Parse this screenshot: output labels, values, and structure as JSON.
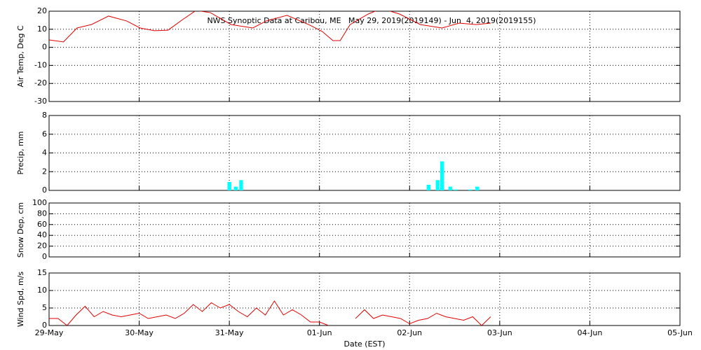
{
  "chart_data": [
    {
      "type": "line",
      "title": "NWS Synoptic Data at Caribou, ME   May 29, 2019(2019149) - Jun  4, 2019(2019155)",
      "y_label": "Air Temp, Deg C",
      "grid": true,
      "ylim": [
        -30,
        20
      ],
      "yticks": [
        -30,
        -20,
        -10,
        0,
        10,
        20
      ],
      "series": [
        {
          "name": "Air Temp",
          "color": "#e00000",
          "x": [
            0,
            0.16,
            0.31,
            0.47,
            0.66,
            0.86,
            1.01,
            1.17,
            1.32,
            1.48,
            1.63,
            1.79,
            2.02,
            2.26,
            2.41,
            2.64,
            2.88,
            3.03,
            3.15,
            3.23,
            3.34,
            3.54,
            3.69,
            3.89,
            4.12,
            4.36,
            4.55,
            4.74,
            4.9
          ],
          "values": [
            4.1,
            3,
            10.7,
            12.6,
            17.3,
            14.6,
            10.7,
            9.2,
            9.5,
            15.3,
            20.4,
            19.2,
            12.6,
            10.7,
            14.6,
            17.7,
            12.6,
            8.8,
            3.7,
            3.7,
            12.6,
            18.4,
            21.5,
            18.4,
            12.6,
            10.7,
            13.4,
            12.6,
            13.4
          ]
        }
      ]
    },
    {
      "type": "bar",
      "y_label": "Precip, mm",
      "grid": true,
      "color": "#00ffff",
      "ylim": [
        0,
        8
      ],
      "yticks": [
        0,
        2,
        4,
        6,
        8
      ],
      "x": [
        1.98,
        2.05,
        2.11,
        4.19,
        4.29,
        4.34,
        4.43,
        4.49,
        4.65,
        4.73
      ],
      "values": [
        0.9,
        0.4,
        1.1,
        0.6,
        1.1,
        3.1,
        0.4,
        0.1,
        0.1,
        0.4
      ]
    },
    {
      "type": "line",
      "y_label": "Snow Dep, cm",
      "grid": true,
      "ylim": [
        0,
        100
      ],
      "yticks": [
        0,
        20,
        40,
        60,
        80,
        100
      ],
      "series": []
    },
    {
      "type": "line",
      "y_label": "Wind Spd, m/s",
      "x_label": "Date (EST)",
      "grid": true,
      "ylim": [
        0,
        15
      ],
      "yticks": [
        0,
        5,
        10,
        15
      ],
      "xlim": [
        0,
        7
      ],
      "xticks": [
        {
          "value": 0,
          "label": "29-May"
        },
        {
          "value": 1,
          "label": "30-May"
        },
        {
          "value": 2,
          "label": "31-May"
        },
        {
          "value": 3,
          "label": "01-Jun"
        },
        {
          "value": 4,
          "label": "02-Jun"
        },
        {
          "value": 5,
          "label": "03-Jun"
        },
        {
          "value": 6,
          "label": "04-Jun"
        },
        {
          "value": 7,
          "label": "05-Jun"
        }
      ],
      "series": [
        {
          "name": "Wind Speed",
          "color": "#e00000",
          "x": [
            0,
            0.1,
            0.2,
            0.3,
            0.4,
            0.5,
            0.6,
            0.7,
            0.8,
            0.9,
            1,
            1.1,
            1.2,
            1.3,
            1.4,
            1.5,
            1.6,
            1.7,
            1.8,
            1.9,
            2,
            2.1,
            2.2,
            2.3,
            2.4,
            2.5,
            2.6,
            2.7,
            2.8,
            2.9,
            3,
            3.1,
            3.25,
            3.4,
            3.5,
            3.6,
            3.7,
            3.8,
            3.9,
            4,
            4.1,
            4.2,
            4.3,
            4.4,
            4.5,
            4.6,
            4.7,
            4.8,
            4.9
          ],
          "values": [
            2,
            2,
            0,
            3,
            5.5,
            2.5,
            4,
            3,
            2.5,
            3,
            3.5,
            2,
            2.5,
            3,
            2,
            3.5,
            6,
            4,
            6.5,
            5,
            6,
            4,
            2.5,
            5,
            3,
            7,
            3,
            4.5,
            3,
            1,
            1,
            0,
            null,
            2,
            4.5,
            2,
            3,
            2.5,
            2,
            0.5,
            1.5,
            2,
            3.5,
            2.5,
            2,
            1.5,
            2.5,
            0,
            2.5
          ]
        }
      ]
    }
  ]
}
